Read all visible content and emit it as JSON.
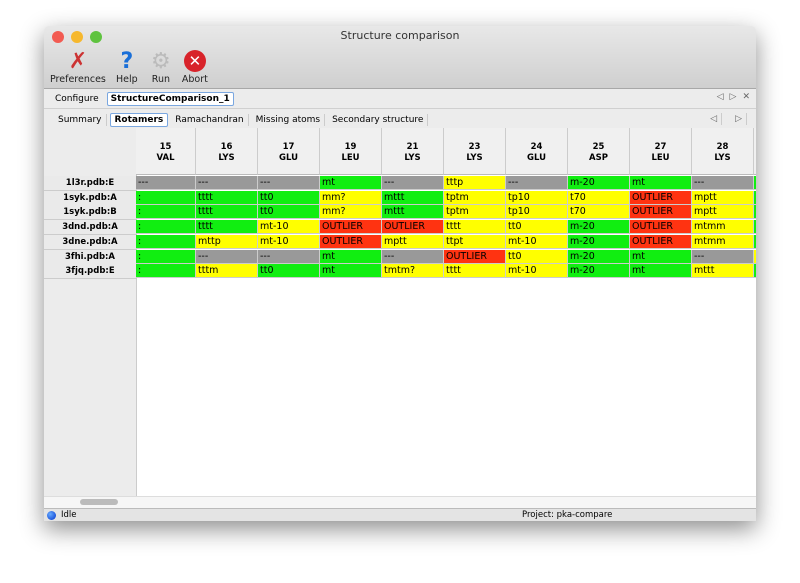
{
  "window": {
    "title": "Structure comparison"
  },
  "toolbar": [
    {
      "label": "Preferences",
      "icon": "wrench-screwdriver-icon"
    },
    {
      "label": "Help",
      "icon": "question-icon"
    },
    {
      "label": "Run",
      "icon": "gear-icon"
    },
    {
      "label": "Abort",
      "icon": "stop-icon"
    }
  ],
  "configure": {
    "label": "Configure",
    "tab": "StructureComparison_1"
  },
  "tabs": [
    {
      "label": "Summary"
    },
    {
      "label": "Rotamers",
      "selected": true
    },
    {
      "label": "Ramachandran"
    },
    {
      "label": "Missing atoms"
    },
    {
      "label": "Secondary structure"
    }
  ],
  "colors": {
    "green": "#11ee11",
    "yellow": "#ffff00",
    "gray": "#999999",
    "red": "#ff3311"
  },
  "table": {
    "columns": [
      {
        "num": "15",
        "res": "VAL"
      },
      {
        "num": "16",
        "res": "LYS"
      },
      {
        "num": "17",
        "res": "GLU"
      },
      {
        "num": "19",
        "res": "LEU"
      },
      {
        "num": "21",
        "res": "LYS"
      },
      {
        "num": "23",
        "res": "LYS"
      },
      {
        "num": "24",
        "res": "GLU"
      },
      {
        "num": "25",
        "res": "ASP"
      },
      {
        "num": "27",
        "res": "LEU"
      },
      {
        "num": "28",
        "res": "LYS"
      }
    ],
    "rows": [
      {
        "label": "1l3r.pdb:E",
        "cells": [
          [
            "---",
            "gray"
          ],
          [
            "---",
            "gray"
          ],
          [
            "---",
            "gray"
          ],
          [
            "mt",
            "green"
          ],
          [
            "---",
            "gray"
          ],
          [
            "tttp",
            "yellow"
          ],
          [
            "---",
            "gray"
          ],
          [
            "m-20",
            "green"
          ],
          [
            "mt",
            "green"
          ],
          [
            "---",
            "gray"
          ],
          [
            "",
            "green"
          ]
        ]
      },
      {
        "label": "1syk.pdb:A",
        "cells": [
          [
            ":",
            "green"
          ],
          [
            "tttt",
            "green"
          ],
          [
            "tt0",
            "green"
          ],
          [
            "mm?",
            "yellow"
          ],
          [
            "mttt",
            "green"
          ],
          [
            "tptm",
            "yellow"
          ],
          [
            "tp10",
            "yellow"
          ],
          [
            "t70",
            "yellow"
          ],
          [
            "OUTLIER",
            "red"
          ],
          [
            "mptt",
            "yellow"
          ],
          [
            "",
            "green"
          ]
        ]
      },
      {
        "label": "1syk.pdb:B",
        "cells": [
          [
            ":",
            "green"
          ],
          [
            "tttt",
            "green"
          ],
          [
            "tt0",
            "green"
          ],
          [
            "mm?",
            "yellow"
          ],
          [
            "mttt",
            "green"
          ],
          [
            "tptm",
            "yellow"
          ],
          [
            "tp10",
            "yellow"
          ],
          [
            "t70",
            "yellow"
          ],
          [
            "OUTLIER",
            "red"
          ],
          [
            "mptt",
            "yellow"
          ],
          [
            "",
            "green"
          ]
        ]
      },
      {
        "label": "3dnd.pdb:A",
        "cells": [
          [
            ":",
            "green"
          ],
          [
            "tttt",
            "green"
          ],
          [
            "mt-10",
            "yellow"
          ],
          [
            "OUTLIER",
            "red"
          ],
          [
            "OUTLIER",
            "red"
          ],
          [
            "tttt",
            "yellow"
          ],
          [
            "tt0",
            "yellow"
          ],
          [
            "m-20",
            "green"
          ],
          [
            "OUTLIER",
            "red"
          ],
          [
            "mtmm",
            "yellow"
          ],
          [
            "",
            "green"
          ]
        ]
      },
      {
        "label": "3dne.pdb:A",
        "cells": [
          [
            ":",
            "green"
          ],
          [
            "mttp",
            "yellow"
          ],
          [
            "mt-10",
            "yellow"
          ],
          [
            "OUTLIER",
            "red"
          ],
          [
            "mptt",
            "yellow"
          ],
          [
            "ttpt",
            "yellow"
          ],
          [
            "mt-10",
            "yellow"
          ],
          [
            "m-20",
            "green"
          ],
          [
            "OUTLIER",
            "red"
          ],
          [
            "mtmm",
            "yellow"
          ],
          [
            "",
            "green"
          ]
        ]
      },
      {
        "label": "3fhi.pdb:A",
        "cells": [
          [
            ":",
            "green"
          ],
          [
            "---",
            "gray"
          ],
          [
            "---",
            "gray"
          ],
          [
            "mt",
            "green"
          ],
          [
            "---",
            "gray"
          ],
          [
            "OUTLIER",
            "red"
          ],
          [
            "tt0",
            "yellow"
          ],
          [
            "m-20",
            "green"
          ],
          [
            "mt",
            "green"
          ],
          [
            "---",
            "gray"
          ],
          [
            "",
            "yellow"
          ]
        ]
      },
      {
        "label": "3fjq.pdb:E",
        "cells": [
          [
            ":",
            "green"
          ],
          [
            "tttm",
            "yellow"
          ],
          [
            "tt0",
            "green"
          ],
          [
            "mt",
            "green"
          ],
          [
            "tmtm?",
            "yellow"
          ],
          [
            "tttt",
            "yellow"
          ],
          [
            "mt-10",
            "yellow"
          ],
          [
            "m-20",
            "green"
          ],
          [
            "mt",
            "green"
          ],
          [
            "mttt",
            "yellow"
          ],
          [
            "",
            "green"
          ]
        ]
      }
    ]
  },
  "status": {
    "state": "Idle",
    "project": "Project: pka-compare"
  }
}
